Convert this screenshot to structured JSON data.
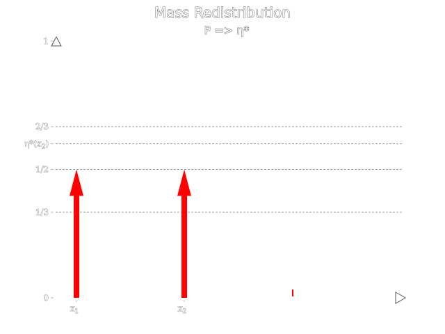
{
  "chart_data": {
    "type": "bar",
    "title": "Mass Redistribution",
    "subtitle": "P => η*",
    "x_categories": [
      {
        "id": "x1",
        "base": "x",
        "sub": "1"
      },
      {
        "id": "x2",
        "base": "x",
        "sub": "2"
      }
    ],
    "arrows": [
      {
        "category": "x1",
        "value": 0.5
      },
      {
        "category": "x2",
        "value": 0.5
      }
    ],
    "ylim": [
      0,
      1
    ],
    "yticks": [
      {
        "value": 0,
        "label": "0",
        "sub": "",
        "suffix": "",
        "guide": false
      },
      {
        "value": 0.3333,
        "label": "1/3",
        "sub": "",
        "suffix": "",
        "guide": true
      },
      {
        "value": 0.5,
        "label": "1/2",
        "sub": "",
        "suffix": "",
        "guide": true
      },
      {
        "value": 0.6,
        "label": "η*(x",
        "sub": "2",
        "suffix": ")",
        "guide": true
      },
      {
        "value": 0.6667,
        "label": "2/3",
        "sub": "",
        "suffix": "",
        "guide": true
      },
      {
        "value": 1,
        "label": "1",
        "sub": "",
        "suffix": "",
        "guide": false
      }
    ],
    "arrow_color": "#ff0000",
    "guide_color": "#999999"
  }
}
